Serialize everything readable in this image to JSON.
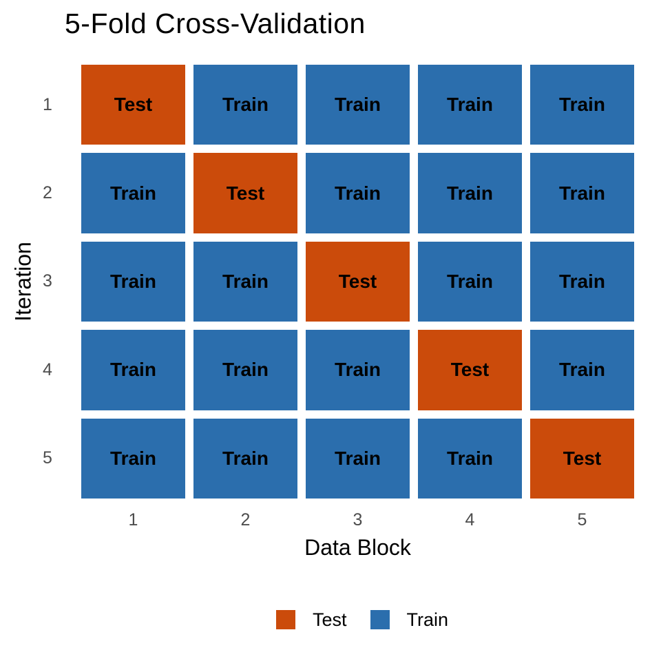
{
  "title": "5-Fold Cross-Validation",
  "colors": {
    "test": "#CB4B0B",
    "train": "#2B6EAD",
    "tick_label": "#4D4D4D",
    "text": "#000000",
    "background": "#FFFFFF"
  },
  "chart_data": {
    "type": "heatmap",
    "title": "5-Fold Cross-Validation",
    "xlabel": "Data Block",
    "ylabel": "Iteration",
    "x_ticks": [
      "1",
      "2",
      "3",
      "4",
      "5"
    ],
    "y_ticks": [
      "1",
      "2",
      "3",
      "4",
      "5"
    ],
    "rows": [
      [
        "Test",
        "Train",
        "Train",
        "Train",
        "Train"
      ],
      [
        "Train",
        "Test",
        "Train",
        "Train",
        "Train"
      ],
      [
        "Train",
        "Train",
        "Test",
        "Train",
        "Train"
      ],
      [
        "Train",
        "Train",
        "Train",
        "Test",
        "Train"
      ],
      [
        "Train",
        "Train",
        "Train",
        "Train",
        "Test"
      ]
    ],
    "cell_values": {
      "Test": "Test",
      "Train": "Train"
    },
    "legend": {
      "position": "bottom",
      "entries": [
        {
          "label": "Test",
          "color": "#CB4B0B"
        },
        {
          "label": "Train",
          "color": "#2B6EAD"
        }
      ]
    },
    "grid_gap": true
  }
}
